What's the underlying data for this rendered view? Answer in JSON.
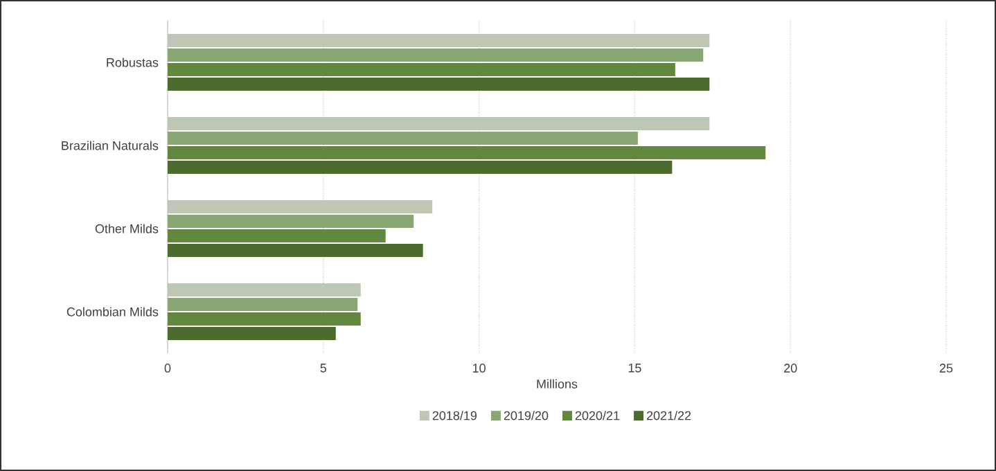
{
  "chart_data": {
    "type": "bar",
    "orientation": "horizontal",
    "xlabel": "Millions",
    "categories": [
      "Robustas",
      "Brazilian Naturals",
      "Other Milds",
      "Colombian Milds"
    ],
    "series": [
      {
        "name": "2018/19",
        "color": "#bcc8b3",
        "values": [
          17.4,
          17.4,
          8.5,
          6.2
        ]
      },
      {
        "name": "2019/20",
        "color": "#8aa673",
        "values": [
          17.2,
          15.1,
          7.9,
          6.1
        ]
      },
      {
        "name": "2020/21",
        "color": "#62883e",
        "values": [
          16.3,
          19.2,
          7.0,
          6.2
        ]
      },
      {
        "name": "2021/22",
        "color": "#4e6b2f",
        "values": [
          17.4,
          16.2,
          8.2,
          5.4
        ]
      }
    ],
    "xlim": [
      0,
      25
    ],
    "xticks": [
      0,
      5,
      10,
      15,
      20,
      25
    ],
    "grid": "x",
    "legend": "bottom"
  }
}
